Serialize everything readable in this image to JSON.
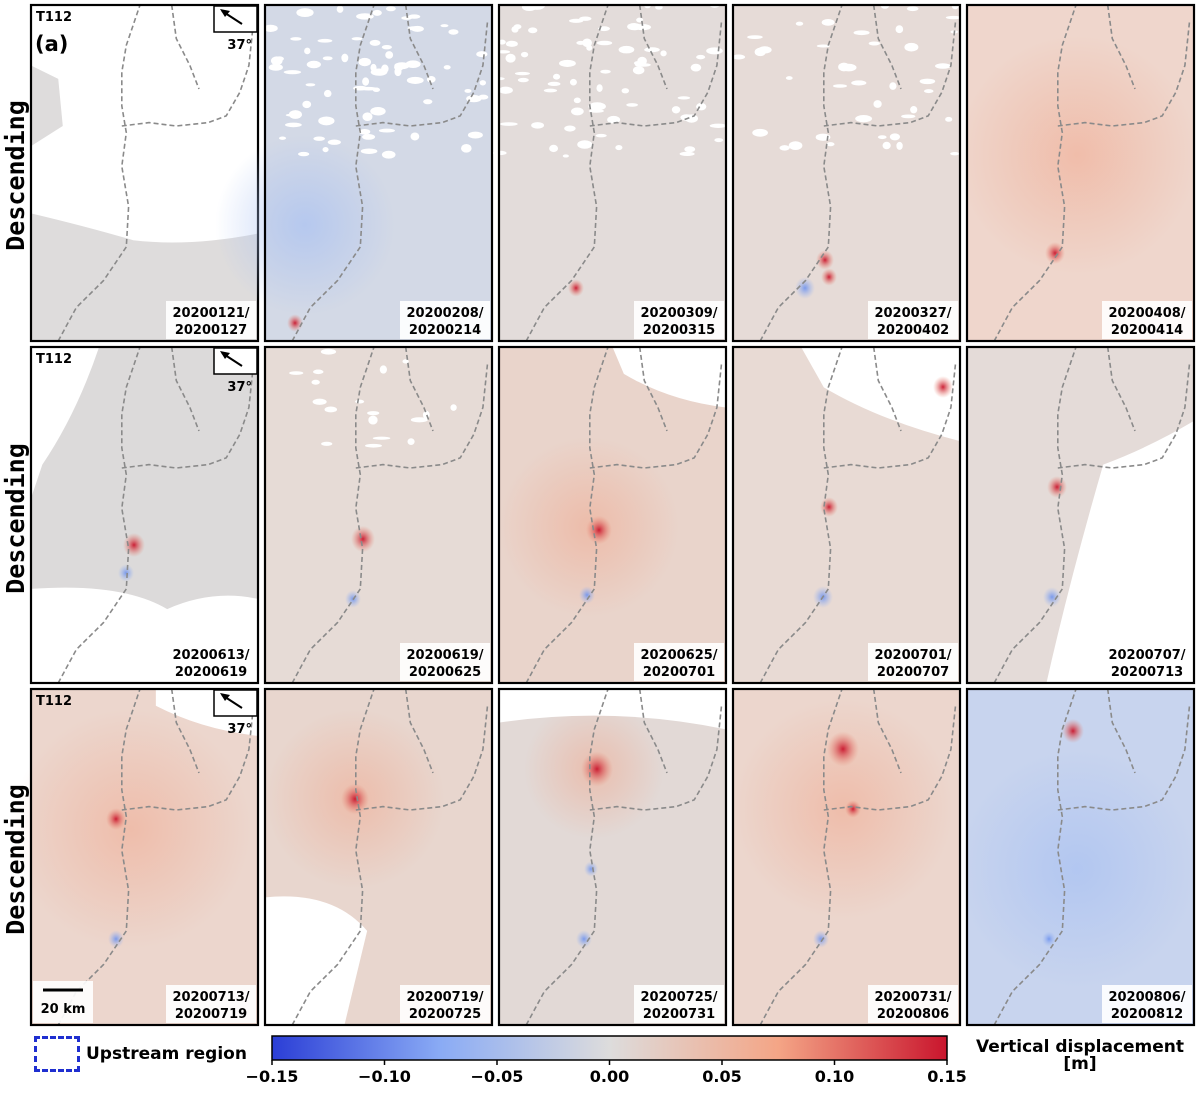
{
  "track": "T112",
  "panel_label": "(a)",
  "heading": "37°",
  "row_labels": [
    "Descending",
    "Descending",
    "Descending"
  ],
  "scale_bar_label": "20 km",
  "legend": {
    "upstream_label": "Upstream region"
  },
  "colorbar": {
    "label_line1": "Vertical displacement",
    "label_line2": "[m]",
    "ticks": [
      "−0.15",
      "−0.10",
      "−0.05",
      "0.00",
      "0.05",
      "0.10",
      "0.15"
    ],
    "range": [
      -0.15,
      0.15
    ],
    "colormap": "coolwarm",
    "colors": [
      "#2b3ed6",
      "#8aabf5",
      "#dddcdc",
      "#f4a586",
      "#c9152d"
    ]
  },
  "panels": [
    {
      "id": "p1",
      "dates": [
        "20200121/",
        "20200127"
      ]
    },
    {
      "id": "p2",
      "dates": [
        "20200208/",
        "20200214"
      ]
    },
    {
      "id": "p3",
      "dates": [
        "20200309/",
        "20200315"
      ]
    },
    {
      "id": "p4",
      "dates": [
        "20200327/",
        "20200402"
      ]
    },
    {
      "id": "p5",
      "dates": [
        "20200408/",
        "20200414"
      ]
    },
    {
      "id": "p6",
      "dates": [
        "20200613/",
        "20200619"
      ]
    },
    {
      "id": "p7",
      "dates": [
        "20200619/",
        "20200625"
      ]
    },
    {
      "id": "p8",
      "dates": [
        "20200625/",
        "20200701"
      ]
    },
    {
      "id": "p9",
      "dates": [
        "20200701/",
        "20200707"
      ]
    },
    {
      "id": "p10",
      "dates": [
        "20200707/",
        "20200713"
      ]
    },
    {
      "id": "p11",
      "dates": [
        "20200713/",
        "20200719"
      ]
    },
    {
      "id": "p12",
      "dates": [
        "20200719/",
        "20200725"
      ]
    },
    {
      "id": "p13",
      "dates": [
        "20200725/",
        "20200731"
      ]
    },
    {
      "id": "p14",
      "dates": [
        "20200731/",
        "20200806"
      ]
    },
    {
      "id": "p15",
      "dates": [
        "20200806/",
        "20200812"
      ]
    }
  ]
}
